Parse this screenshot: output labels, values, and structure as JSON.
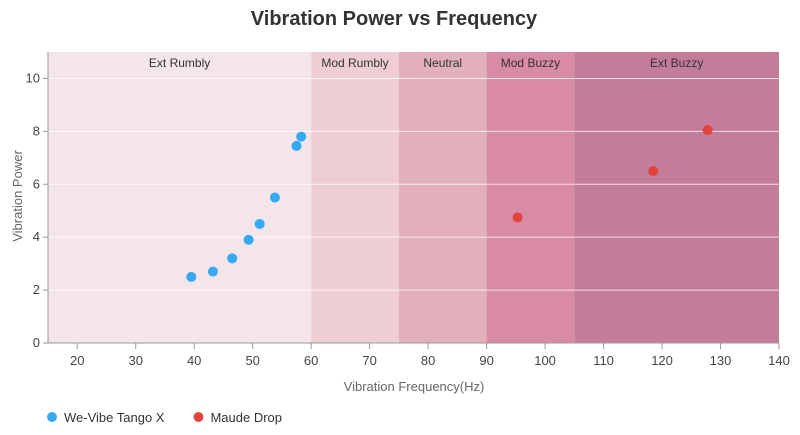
{
  "chart_data": {
    "type": "scatter",
    "title": "Vibration Power vs Frequency",
    "xlabel": "Vibration Frequency(Hz)",
    "ylabel": "Vibration Power",
    "xlim": [
      15,
      140
    ],
    "ylim": [
      0,
      11
    ],
    "x_ticks": [
      20,
      30,
      40,
      50,
      60,
      70,
      80,
      90,
      100,
      110,
      120,
      130,
      140
    ],
    "y_ticks": [
      0,
      2,
      4,
      6,
      8,
      10
    ],
    "grid": true,
    "legend_position": "bottom-left",
    "bands": [
      {
        "label": "Ext Rumbly",
        "from": 15,
        "to": 60,
        "color": "#f3e5e8"
      },
      {
        "label": "Mod Rumbly",
        "from": 60,
        "to": 75,
        "color": "#eecdd5"
      },
      {
        "label": "Neutral",
        "from": 75,
        "to": 90,
        "color": "#e2afbc"
      },
      {
        "label": "Mod Buzzy",
        "from": 90,
        "to": 105,
        "color": "#d98aa4"
      },
      {
        "label": "Ext Buzzy",
        "from": 105,
        "to": 140,
        "color": "#c47d99"
      }
    ],
    "series": [
      {
        "name": "We-Vibe Tango X",
        "color": "#36a9f4",
        "points": [
          {
            "x": 39.5,
            "y": 2.5
          },
          {
            "x": 43.2,
            "y": 2.7
          },
          {
            "x": 46.5,
            "y": 3.2
          },
          {
            "x": 49.3,
            "y": 3.9
          },
          {
            "x": 51.2,
            "y": 4.5
          },
          {
            "x": 53.8,
            "y": 5.5
          },
          {
            "x": 57.5,
            "y": 7.45
          },
          {
            "x": 58.3,
            "y": 7.8
          }
        ]
      },
      {
        "name": "Maude Drop",
        "color": "#e2443d",
        "points": [
          {
            "x": 95.3,
            "y": 4.75
          },
          {
            "x": 118.5,
            "y": 6.5
          },
          {
            "x": 127.8,
            "y": 8.05
          }
        ]
      }
    ]
  }
}
